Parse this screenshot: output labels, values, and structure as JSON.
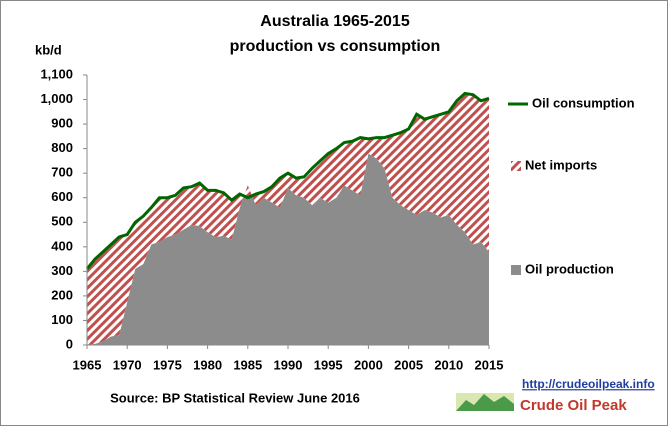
{
  "chart_data": {
    "type": "area",
    "title": "Australia 1965-2015",
    "subtitle": "production vs consumption",
    "y_axis_label": "kb/d",
    "source": "Source: BP Statistical Review  June 2016",
    "link": "http://crudeoilpeak.info",
    "brand": "Crude Oil Peak",
    "x": [
      1965,
      1966,
      1967,
      1968,
      1969,
      1970,
      1971,
      1972,
      1973,
      1974,
      1975,
      1976,
      1977,
      1978,
      1979,
      1980,
      1981,
      1982,
      1983,
      1984,
      1985,
      1986,
      1987,
      1988,
      1989,
      1990,
      1991,
      1992,
      1993,
      1994,
      1995,
      1996,
      1997,
      1998,
      1999,
      2000,
      2001,
      2002,
      2003,
      2004,
      2005,
      2006,
      2007,
      2008,
      2009,
      2010,
      2011,
      2012,
      2013,
      2014,
      2015
    ],
    "xlim": [
      1965,
      2015
    ],
    "xticks": [
      1965,
      1970,
      1975,
      1980,
      1985,
      1990,
      1995,
      2000,
      2005,
      2010,
      2015
    ],
    "ylim": [
      0,
      1100
    ],
    "yticks": [
      0,
      100,
      200,
      300,
      400,
      500,
      600,
      700,
      800,
      900,
      {
        "value": 1000,
        "label": "1,000"
      },
      {
        "value": 1100,
        "label": "1,100"
      }
    ],
    "grid": false,
    "series": [
      {
        "name": "Oil production",
        "color": "#8c8c8c",
        "style": "area",
        "values": [
          0,
          5,
          15,
          35,
          40,
          175,
          310,
          330,
          410,
          420,
          440,
          450,
          470,
          490,
          485,
          460,
          440,
          445,
          430,
          560,
          650,
          570,
          600,
          580,
          560,
          640,
          610,
          600,
          570,
          600,
          580,
          600,
          650,
          630,
          610,
          780,
          760,
          720,
          600,
          570,
          550,
          530,
          550,
          540,
          520,
          530,
          490,
          460,
          410,
          420,
          380
        ]
      },
      {
        "name": "Net imports",
        "color": "#c0504d",
        "style": "hatch",
        "values": [
          310,
          345,
          365,
          375,
          400,
          275,
          190,
          195,
          150,
          180,
          160,
          160,
          170,
          155,
          175,
          170,
          190,
          175,
          160,
          55,
          -50,
          45,
          25,
          65,
          120,
          60,
          70,
          85,
          150,
          150,
          200,
          200,
          175,
          200,
          235,
          60,
          85,
          125,
          255,
          295,
          330,
          410,
          370,
          390,
          420,
          420,
          505,
          565,
          610,
          575,
          625
        ]
      },
      {
        "name": "Oil consumption",
        "color": "#006600",
        "style": "line",
        "values": [
          310,
          350,
          380,
          410,
          440,
          450,
          500,
          525,
          560,
          600,
          600,
          610,
          640,
          645,
          660,
          630,
          630,
          620,
          590,
          615,
          600,
          615,
          625,
          645,
          680,
          700,
          680,
          685,
          720,
          750,
          780,
          800,
          825,
          830,
          845,
          840,
          845,
          845,
          855,
          865,
          880,
          940,
          920,
          930,
          940,
          950,
          995,
          1025,
          1020,
          995,
          1005
        ]
      }
    ]
  }
}
